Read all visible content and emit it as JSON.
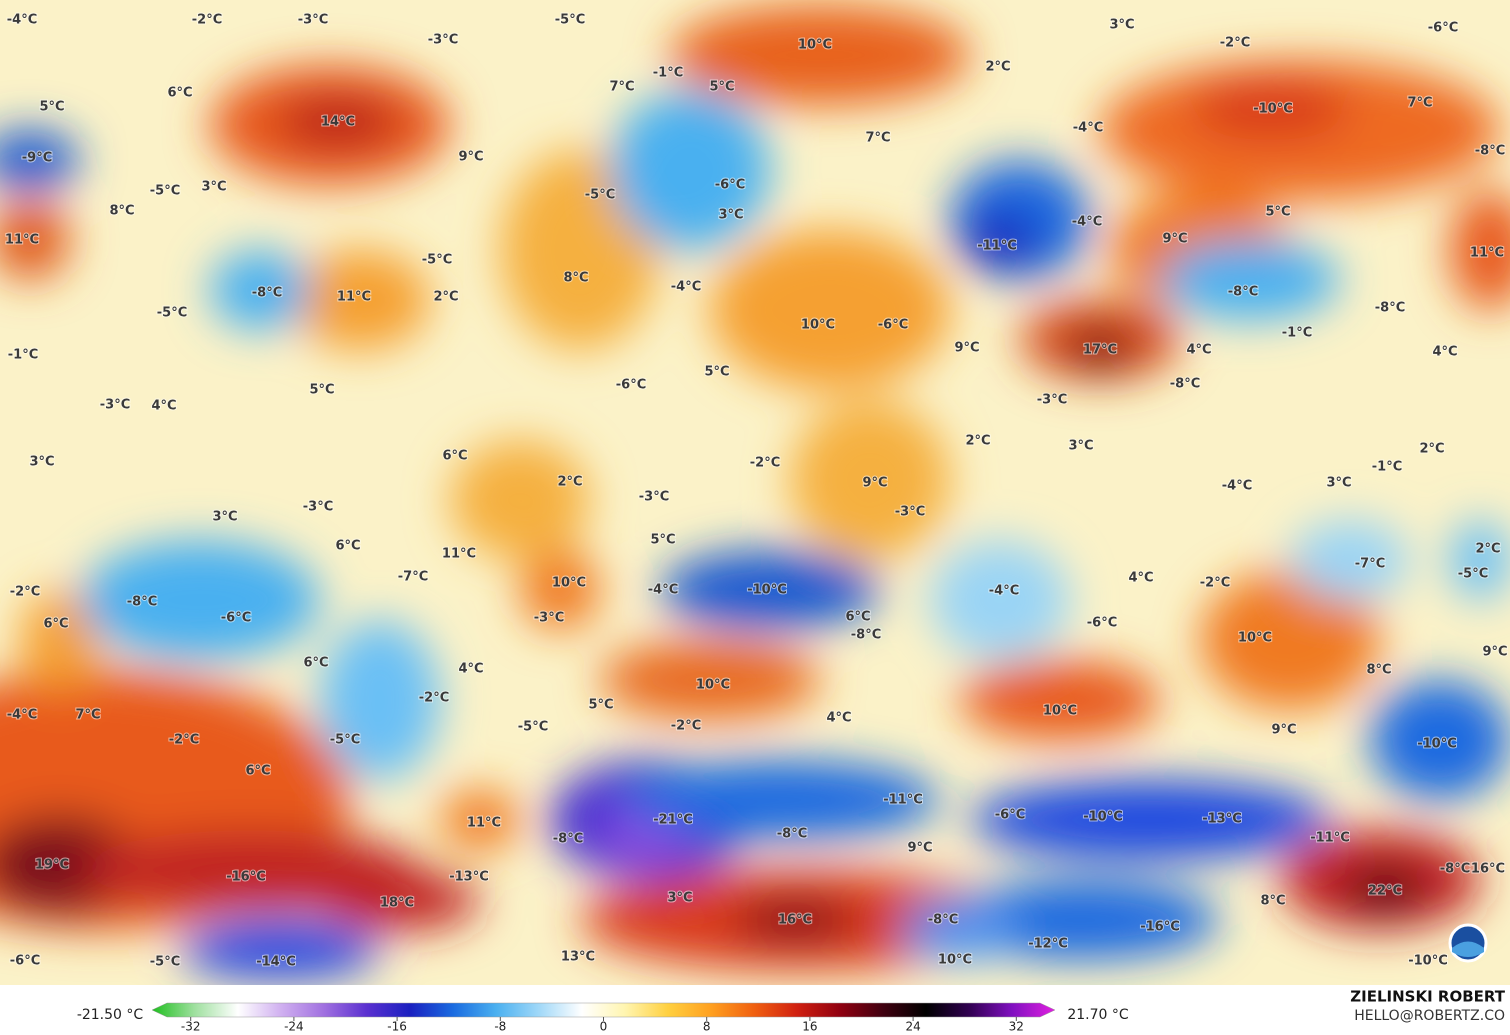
{
  "map": {
    "temperature_labels": [
      "-4°C",
      "-2°C",
      "-3°C",
      "-3°C",
      "-5°C",
      "3°C",
      "-2°C",
      "-6°C",
      "10°C",
      "2°C",
      "7°C",
      "-1°C",
      "5°C",
      "5°C",
      "6°C",
      "14°C",
      "9°C",
      "-10°C",
      "7°C",
      "-4°C",
      "7°C",
      "-9°C",
      "-5°C",
      "3°C",
      "-8°C",
      "-5°C",
      "-6°C",
      "3°C",
      "8°C",
      "5°C",
      "-4°C",
      "11°C",
      "-11°C",
      "9°C",
      "11°C",
      "-5°C",
      "8°C",
      "-4°C",
      "-8°C",
      "11°C",
      "2°C",
      "-8°C",
      "-8°C",
      "-5°C",
      "10°C",
      "-6°C",
      "-1°C",
      "17°C",
      "4°C",
      "4°C",
      "-1°C",
      "9°C",
      "5°C",
      "5°C",
      "-6°C",
      "-8°C",
      "-3°C",
      "-3°C",
      "4°C",
      "2°C",
      "3°C",
      "2°C",
      "3°C",
      "6°C",
      "-2°C",
      "-1°C",
      "2°C",
      "9°C",
      "3°C",
      "-3°C",
      "-4°C",
      "-3°C",
      "-3°C",
      "3°C",
      "5°C",
      "6°C",
      "11°C",
      "2°C",
      "-7°C",
      "-7°C",
      "4°C",
      "-2°C",
      "-5°C",
      "-2°C",
      "10°C",
      "-4°C",
      "-10°C",
      "-4°C",
      "-8°C",
      "-6°C",
      "-3°C",
      "6°C",
      "6°C",
      "-6°C",
      "-8°C",
      "10°C",
      "6°C",
      "4°C",
      "9°C",
      "8°C",
      "10°C",
      "-2°C",
      "5°C",
      "-4°C",
      "7°C",
      "10°C",
      "4°C",
      "-2°C",
      "-5°C",
      "9°C",
      "-2°C",
      "-5°C",
      "-10°C",
      "6°C",
      "-11°C",
      "11°C",
      "-21°C",
      "-6°C",
      "-10°C",
      "-13°C",
      "-8°C",
      "-8°C",
      "-11°C",
      "9°C",
      "19°C",
      "-16°C",
      "-13°C",
      "-8°C",
      "16°C",
      "22°C",
      "3°C",
      "18°C",
      "8°C",
      "16°C",
      "-8°C",
      "-16°C",
      "-12°C",
      "-5°C",
      "-14°C",
      "13°C",
      "10°C",
      "-6°C",
      "-10°C"
    ]
  },
  "chart_data": {
    "type": "colorbar",
    "min_label": "-21.50 °C",
    "max_label": "21.70 °C",
    "xlim": [
      -35,
      35
    ],
    "xticks": [
      -32,
      -24,
      -16,
      -8,
      0,
      8,
      16,
      24,
      32
    ],
    "colorscale": [
      "#1fbf1f",
      "#a0e0a0",
      "#ffffff",
      "#d0b0f0",
      "#a070e0",
      "#5a30d0",
      "#1a20c0",
      "#1a6be0",
      "#4ab0f0",
      "#a0d8f8",
      "#ffffff",
      "#fff5b0",
      "#ffd040",
      "#ffa020",
      "#f06010",
      "#d02010",
      "#900010",
      "#400010",
      "#000000",
      "#300050",
      "#8010c0",
      "#e020e0"
    ]
  },
  "credit": {
    "name": "ZIELINSKI ROBERT",
    "email": "HELLO@ROBERTZ.CO"
  }
}
